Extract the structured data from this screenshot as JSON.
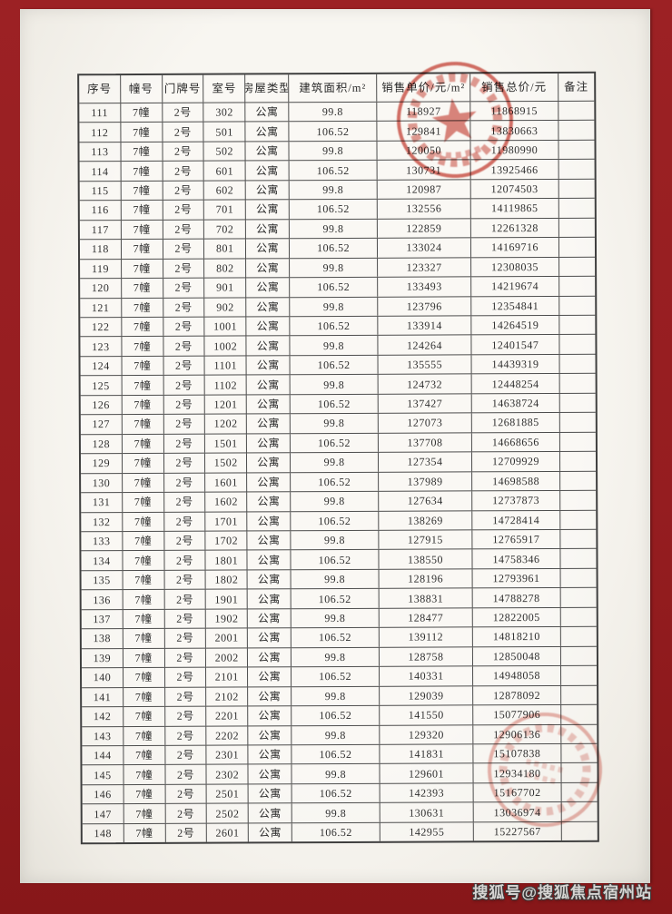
{
  "table": {
    "headers": [
      "序号",
      "幢号",
      "门牌号",
      "室号",
      "房屋类型",
      "建筑面积/m²",
      "销售单价/元/m²",
      "销售总价/元",
      "备注"
    ],
    "rows": [
      [
        "111",
        "7幢",
        "2号",
        "302",
        "公寓",
        "99.8",
        "118927",
        "11868915",
        ""
      ],
      [
        "112",
        "7幢",
        "2号",
        "501",
        "公寓",
        "106.52",
        "129841",
        "13830663",
        ""
      ],
      [
        "113",
        "7幢",
        "2号",
        "502",
        "公寓",
        "99.8",
        "120050",
        "11980990",
        ""
      ],
      [
        "114",
        "7幢",
        "2号",
        "601",
        "公寓",
        "106.52",
        "130731",
        "13925466",
        ""
      ],
      [
        "115",
        "7幢",
        "2号",
        "602",
        "公寓",
        "99.8",
        "120987",
        "12074503",
        ""
      ],
      [
        "116",
        "7幢",
        "2号",
        "701",
        "公寓",
        "106.52",
        "132556",
        "14119865",
        ""
      ],
      [
        "117",
        "7幢",
        "2号",
        "702",
        "公寓",
        "99.8",
        "122859",
        "12261328",
        ""
      ],
      [
        "118",
        "7幢",
        "2号",
        "801",
        "公寓",
        "106.52",
        "133024",
        "14169716",
        ""
      ],
      [
        "119",
        "7幢",
        "2号",
        "802",
        "公寓",
        "99.8",
        "123327",
        "12308035",
        ""
      ],
      [
        "120",
        "7幢",
        "2号",
        "901",
        "公寓",
        "106.52",
        "133493",
        "14219674",
        ""
      ],
      [
        "121",
        "7幢",
        "2号",
        "902",
        "公寓",
        "99.8",
        "123796",
        "12354841",
        ""
      ],
      [
        "122",
        "7幢",
        "2号",
        "1001",
        "公寓",
        "106.52",
        "133914",
        "14264519",
        ""
      ],
      [
        "123",
        "7幢",
        "2号",
        "1002",
        "公寓",
        "99.8",
        "124264",
        "12401547",
        ""
      ],
      [
        "124",
        "7幢",
        "2号",
        "1101",
        "公寓",
        "106.52",
        "135555",
        "14439319",
        ""
      ],
      [
        "125",
        "7幢",
        "2号",
        "1102",
        "公寓",
        "99.8",
        "124732",
        "12448254",
        ""
      ],
      [
        "126",
        "7幢",
        "2号",
        "1201",
        "公寓",
        "106.52",
        "137427",
        "14638724",
        ""
      ],
      [
        "127",
        "7幢",
        "2号",
        "1202",
        "公寓",
        "99.8",
        "127073",
        "12681885",
        ""
      ],
      [
        "128",
        "7幢",
        "2号",
        "1501",
        "公寓",
        "106.52",
        "137708",
        "14668656",
        ""
      ],
      [
        "129",
        "7幢",
        "2号",
        "1502",
        "公寓",
        "99.8",
        "127354",
        "12709929",
        ""
      ],
      [
        "130",
        "7幢",
        "2号",
        "1601",
        "公寓",
        "106.52",
        "137989",
        "14698588",
        ""
      ],
      [
        "131",
        "7幢",
        "2号",
        "1602",
        "公寓",
        "99.8",
        "127634",
        "12737873",
        ""
      ],
      [
        "132",
        "7幢",
        "2号",
        "1701",
        "公寓",
        "106.52",
        "138269",
        "14728414",
        ""
      ],
      [
        "133",
        "7幢",
        "2号",
        "1702",
        "公寓",
        "99.8",
        "127915",
        "12765917",
        ""
      ],
      [
        "134",
        "7幢",
        "2号",
        "1801",
        "公寓",
        "106.52",
        "138550",
        "14758346",
        ""
      ],
      [
        "135",
        "7幢",
        "2号",
        "1802",
        "公寓",
        "99.8",
        "128196",
        "12793961",
        ""
      ],
      [
        "136",
        "7幢",
        "2号",
        "1901",
        "公寓",
        "106.52",
        "138831",
        "14788278",
        ""
      ],
      [
        "137",
        "7幢",
        "2号",
        "1902",
        "公寓",
        "99.8",
        "128477",
        "12822005",
        ""
      ],
      [
        "138",
        "7幢",
        "2号",
        "2001",
        "公寓",
        "106.52",
        "139112",
        "14818210",
        ""
      ],
      [
        "139",
        "7幢",
        "2号",
        "2002",
        "公寓",
        "99.8",
        "128758",
        "12850048",
        ""
      ],
      [
        "140",
        "7幢",
        "2号",
        "2101",
        "公寓",
        "106.52",
        "140331",
        "14948058",
        ""
      ],
      [
        "141",
        "7幢",
        "2号",
        "2102",
        "公寓",
        "99.8",
        "129039",
        "12878092",
        ""
      ],
      [
        "142",
        "7幢",
        "2号",
        "2201",
        "公寓",
        "106.52",
        "141550",
        "15077906",
        ""
      ],
      [
        "143",
        "7幢",
        "2号",
        "2202",
        "公寓",
        "99.8",
        "129320",
        "12906136",
        ""
      ],
      [
        "144",
        "7幢",
        "2号",
        "2301",
        "公寓",
        "106.52",
        "141831",
        "15107838",
        ""
      ],
      [
        "145",
        "7幢",
        "2号",
        "2302",
        "公寓",
        "99.8",
        "129601",
        "12934180",
        ""
      ],
      [
        "146",
        "7幢",
        "2号",
        "2501",
        "公寓",
        "106.52",
        "142393",
        "15167702",
        ""
      ],
      [
        "147",
        "7幢",
        "2号",
        "2502",
        "公寓",
        "99.8",
        "130631",
        "13036974",
        ""
      ],
      [
        "148",
        "7幢",
        "2号",
        "2601",
        "公寓",
        "106.52",
        "142955",
        "15227567",
        ""
      ]
    ]
  },
  "stamps": {
    "top": "circular-red-official-seal-with-star",
    "bottom": "circular-red-official-seal-faint"
  },
  "watermark": "搜狐号@搜狐焦点宿州站",
  "colors": {
    "frame": "#951d20",
    "stamp": "#c63a2e",
    "grid": "#4d4d4d",
    "page": "#f6f4ef"
  }
}
